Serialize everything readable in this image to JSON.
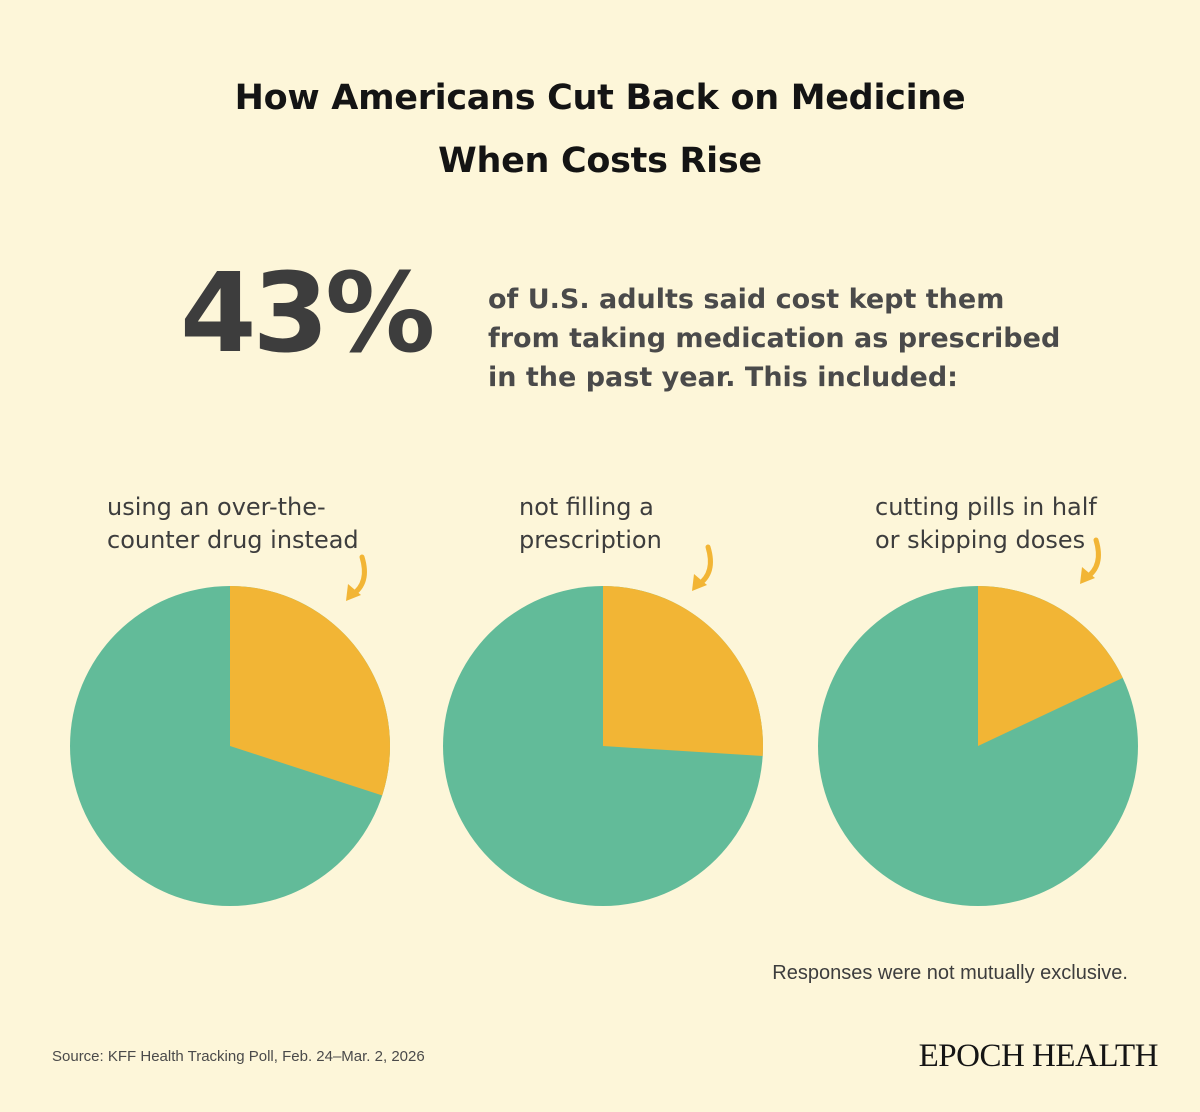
{
  "header": {
    "title_line1": "How Americans Cut Back on Medicine",
    "title_line2": "When Costs Rise"
  },
  "headline": {
    "percent": "43%",
    "statement_lines": [
      "of U.S. adults said cost kept them",
      "from taking medication as prescribed",
      "in the past year. This included:"
    ]
  },
  "chart_data": {
    "type": "pie",
    "total_percent": 43,
    "colors": {
      "highlight": "#f2b535",
      "remainder": "#62bb99",
      "arrow": "#f2b535"
    },
    "charts": [
      {
        "label_lines": [
          "using an over-the-",
          "counter drug instead"
        ],
        "value": 30
      },
      {
        "label_lines": [
          "not filling a",
          "prescription"
        ],
        "value": 26
      },
      {
        "label_lines": [
          "cutting pills in half",
          "or skipping doses"
        ],
        "value": 18
      }
    ]
  },
  "footer": {
    "note": "Responses were not mutually exclusive.",
    "source": "Source: KFF Health Tracking Poll, Feb. 24–Mar. 2, 2026",
    "logo_text": "EPOCH HEALTH"
  }
}
